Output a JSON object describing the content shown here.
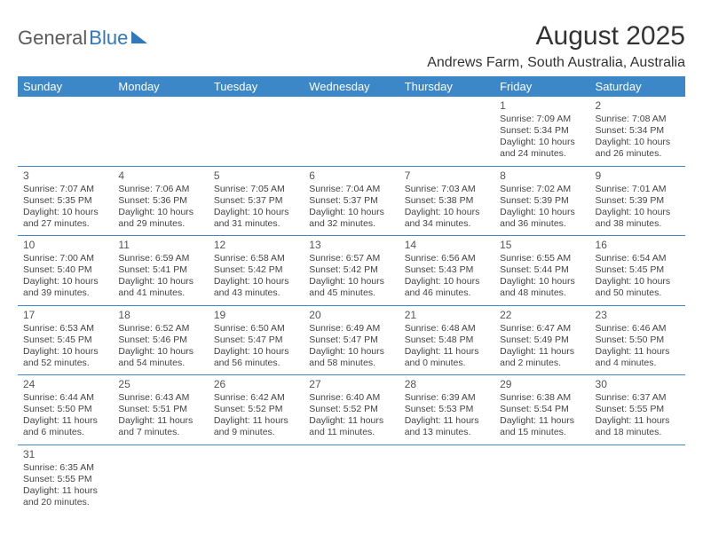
{
  "logo": {
    "left": "General",
    "right": "Blue"
  },
  "title": "August 2025",
  "location": "Andrews Farm, South Australia, Australia",
  "colors": {
    "header_bg": "#3b87c8",
    "header_text": "#ffffff",
    "row_border": "#3b87c8",
    "body_text": "#444444",
    "title_text": "#333333",
    "logo_gray": "#5b5b5b",
    "logo_blue": "#2f78bd",
    "background": "#ffffff"
  },
  "day_headers": [
    "Sunday",
    "Monday",
    "Tuesday",
    "Wednesday",
    "Thursday",
    "Friday",
    "Saturday"
  ],
  "weeks": [
    [
      null,
      null,
      null,
      null,
      null,
      {
        "n": "1",
        "sunrise": "7:09 AM",
        "sunset": "5:34 PM",
        "day_h": "10",
        "day_m": "24"
      },
      {
        "n": "2",
        "sunrise": "7:08 AM",
        "sunset": "5:34 PM",
        "day_h": "10",
        "day_m": "26"
      }
    ],
    [
      {
        "n": "3",
        "sunrise": "7:07 AM",
        "sunset": "5:35 PM",
        "day_h": "10",
        "day_m": "27"
      },
      {
        "n": "4",
        "sunrise": "7:06 AM",
        "sunset": "5:36 PM",
        "day_h": "10",
        "day_m": "29"
      },
      {
        "n": "5",
        "sunrise": "7:05 AM",
        "sunset": "5:37 PM",
        "day_h": "10",
        "day_m": "31"
      },
      {
        "n": "6",
        "sunrise": "7:04 AM",
        "sunset": "5:37 PM",
        "day_h": "10",
        "day_m": "32"
      },
      {
        "n": "7",
        "sunrise": "7:03 AM",
        "sunset": "5:38 PM",
        "day_h": "10",
        "day_m": "34"
      },
      {
        "n": "8",
        "sunrise": "7:02 AM",
        "sunset": "5:39 PM",
        "day_h": "10",
        "day_m": "36"
      },
      {
        "n": "9",
        "sunrise": "7:01 AM",
        "sunset": "5:39 PM",
        "day_h": "10",
        "day_m": "38"
      }
    ],
    [
      {
        "n": "10",
        "sunrise": "7:00 AM",
        "sunset": "5:40 PM",
        "day_h": "10",
        "day_m": "39"
      },
      {
        "n": "11",
        "sunrise": "6:59 AM",
        "sunset": "5:41 PM",
        "day_h": "10",
        "day_m": "41"
      },
      {
        "n": "12",
        "sunrise": "6:58 AM",
        "sunset": "5:42 PM",
        "day_h": "10",
        "day_m": "43"
      },
      {
        "n": "13",
        "sunrise": "6:57 AM",
        "sunset": "5:42 PM",
        "day_h": "10",
        "day_m": "45"
      },
      {
        "n": "14",
        "sunrise": "6:56 AM",
        "sunset": "5:43 PM",
        "day_h": "10",
        "day_m": "46"
      },
      {
        "n": "15",
        "sunrise": "6:55 AM",
        "sunset": "5:44 PM",
        "day_h": "10",
        "day_m": "48"
      },
      {
        "n": "16",
        "sunrise": "6:54 AM",
        "sunset": "5:45 PM",
        "day_h": "10",
        "day_m": "50"
      }
    ],
    [
      {
        "n": "17",
        "sunrise": "6:53 AM",
        "sunset": "5:45 PM",
        "day_h": "10",
        "day_m": "52"
      },
      {
        "n": "18",
        "sunrise": "6:52 AM",
        "sunset": "5:46 PM",
        "day_h": "10",
        "day_m": "54"
      },
      {
        "n": "19",
        "sunrise": "6:50 AM",
        "sunset": "5:47 PM",
        "day_h": "10",
        "day_m": "56"
      },
      {
        "n": "20",
        "sunrise": "6:49 AM",
        "sunset": "5:47 PM",
        "day_h": "10",
        "day_m": "58"
      },
      {
        "n": "21",
        "sunrise": "6:48 AM",
        "sunset": "5:48 PM",
        "day_h": "11",
        "day_m": "0"
      },
      {
        "n": "22",
        "sunrise": "6:47 AM",
        "sunset": "5:49 PM",
        "day_h": "11",
        "day_m": "2"
      },
      {
        "n": "23",
        "sunrise": "6:46 AM",
        "sunset": "5:50 PM",
        "day_h": "11",
        "day_m": "4"
      }
    ],
    [
      {
        "n": "24",
        "sunrise": "6:44 AM",
        "sunset": "5:50 PM",
        "day_h": "11",
        "day_m": "6"
      },
      {
        "n": "25",
        "sunrise": "6:43 AM",
        "sunset": "5:51 PM",
        "day_h": "11",
        "day_m": "7"
      },
      {
        "n": "26",
        "sunrise": "6:42 AM",
        "sunset": "5:52 PM",
        "day_h": "11",
        "day_m": "9"
      },
      {
        "n": "27",
        "sunrise": "6:40 AM",
        "sunset": "5:52 PM",
        "day_h": "11",
        "day_m": "11"
      },
      {
        "n": "28",
        "sunrise": "6:39 AM",
        "sunset": "5:53 PM",
        "day_h": "11",
        "day_m": "13"
      },
      {
        "n": "29",
        "sunrise": "6:38 AM",
        "sunset": "5:54 PM",
        "day_h": "11",
        "day_m": "15"
      },
      {
        "n": "30",
        "sunrise": "6:37 AM",
        "sunset": "5:55 PM",
        "day_h": "11",
        "day_m": "18"
      }
    ],
    [
      {
        "n": "31",
        "sunrise": "6:35 AM",
        "sunset": "5:55 PM",
        "day_h": "11",
        "day_m": "20"
      },
      null,
      null,
      null,
      null,
      null,
      null
    ]
  ],
  "labels": {
    "sunrise": "Sunrise: ",
    "sunset": "Sunset: ",
    "daylight_pre": "Daylight: ",
    "hours_mid": " hours and ",
    "minutes_post": " minutes."
  }
}
